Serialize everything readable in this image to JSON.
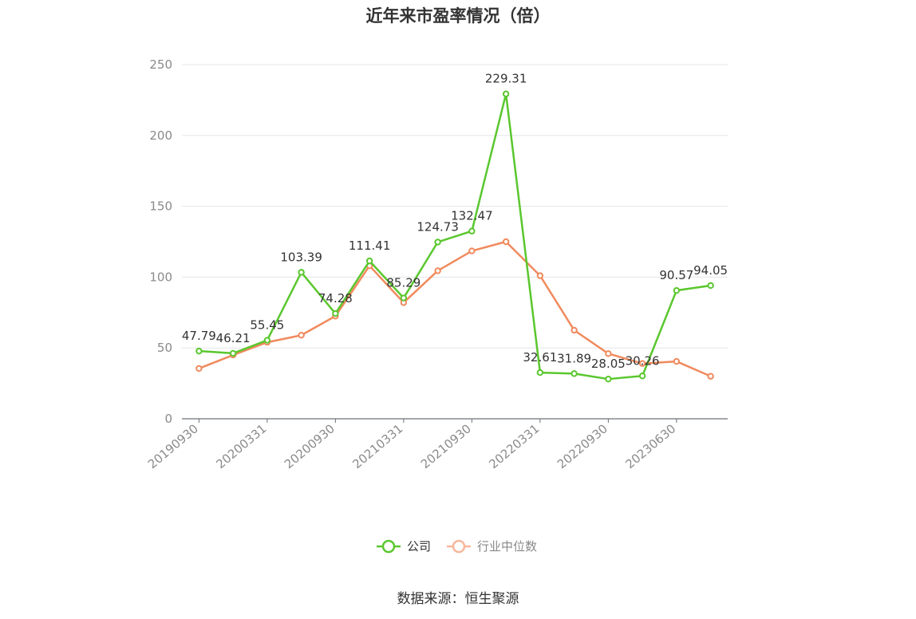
{
  "chart_data": {
    "type": "line",
    "title": "近年来市盈率情况（倍）",
    "source": "数据来源：恒生聚源",
    "x": [
      "20190930",
      "20191231",
      "20200331",
      "20200630",
      "20200930",
      "20201231",
      "20210331",
      "20210630",
      "20210930",
      "20211231",
      "20220331",
      "20220630",
      "20220930",
      "20221231",
      "20230630",
      "20230930"
    ],
    "x_tick_labels": [
      "20190930",
      "20200331",
      "20200930",
      "20210331",
      "20210930",
      "20220331",
      "20220930",
      "20230630"
    ],
    "ylim": [
      0,
      250
    ],
    "y_ticks": [
      0,
      50,
      100,
      150,
      200,
      250
    ],
    "grid": true,
    "legend_position": "bottom",
    "series": [
      {
        "name": "公司",
        "color": "#5ac72e",
        "values": [
          47.79,
          46.21,
          55.45,
          103.39,
          74.28,
          111.41,
          85.29,
          124.73,
          132.47,
          229.31,
          32.61,
          31.89,
          28.05,
          30.26,
          90.57,
          94.05
        ],
        "labels": [
          "47.79",
          "46.21",
          "55.45",
          "103.39",
          "74.28",
          "111.41",
          "85.29",
          "124.73",
          "132.47",
          "229.31",
          "32.61",
          "31.89",
          "28.05",
          "30.26",
          "90.57",
          "94.05"
        ]
      },
      {
        "name": "行业中位数",
        "color": "#f08a5d",
        "values": [
          35.5,
          45,
          54,
          59,
          72.5,
          108,
          82,
          104.5,
          118.5,
          125,
          101,
          62.5,
          46,
          39,
          40.5,
          30
        ]
      }
    ]
  }
}
